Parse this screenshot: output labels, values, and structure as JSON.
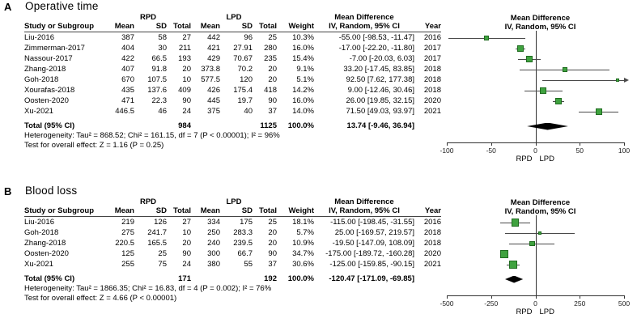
{
  "figure": {
    "headers": {
      "study": "Study or Subgroup",
      "mean": "Mean",
      "sd": "SD",
      "total": "Total",
      "weight": "Weight",
      "year": "Year",
      "total_label": "Total (95% CI)"
    },
    "colors": {
      "square": "#3fa23f",
      "square_border": "#1f6b1f",
      "ci_line": "#4a4a4a",
      "diamond": "#000000",
      "axis": "#333333"
    }
  },
  "chart_data": [
    {
      "type": "forest",
      "panel": "A",
      "title": "Operative time",
      "group1": "RPD",
      "group2": "LPD",
      "effect_label": "Mean Difference",
      "model": "IV, Random, 95% CI",
      "studies": [
        {
          "study": "Liu-2016",
          "mean1": 387,
          "sd1": 58,
          "total1": 27,
          "mean2": 442,
          "sd2": 96,
          "total2": 25,
          "weight": "10.3%",
          "md": -55.0,
          "ci_lo": -98.53,
          "ci_hi": -11.47,
          "ci_text": "-55.00 [-98.53, -11.47]",
          "year": "2016"
        },
        {
          "study": "Zimmerman-2017",
          "mean1": 404,
          "sd1": 30,
          "total1": 211,
          "mean2": 421,
          "sd2": 27.91,
          "total2": 280,
          "weight": "16.0%",
          "md": -17.0,
          "ci_lo": -22.2,
          "ci_hi": -11.8,
          "ci_text": "-17.00 [-22.20, -11.80]",
          "year": "2017"
        },
        {
          "study": "Nassour-2017",
          "mean1": 422,
          "sd1": 66.5,
          "total1": 193,
          "mean2": 429,
          "sd2": 70.67,
          "total2": 235,
          "weight": "15.4%",
          "md": -7.0,
          "ci_lo": -20.03,
          "ci_hi": 6.03,
          "ci_text": "-7.00 [-20.03, 6.03]",
          "year": "2017"
        },
        {
          "study": "Zhang-2018",
          "mean1": 407,
          "sd1": 91.8,
          "total1": 20,
          "mean2": 373.8,
          "sd2": 70.2,
          "total2": 20,
          "weight": "9.1%",
          "md": 33.2,
          "ci_lo": -17.45,
          "ci_hi": 83.85,
          "ci_text": "33.20 [-17.45, 83.85]",
          "year": "2018"
        },
        {
          "study": "Goh-2018",
          "mean1": 670,
          "sd1": 107.5,
          "total1": 10,
          "mean2": 577.5,
          "sd2": 120,
          "total2": 20,
          "weight": "5.1%",
          "md": 92.5,
          "ci_lo": 7.62,
          "ci_hi": 177.38,
          "ci_text": "92.50 [7.62, 177.38]",
          "year": "2018"
        },
        {
          "study": "Xourafas-2018",
          "mean1": 435,
          "sd1": 137.6,
          "total1": 409,
          "mean2": 426,
          "sd2": 175.4,
          "total2": 418,
          "weight": "14.2%",
          "md": 9.0,
          "ci_lo": -12.46,
          "ci_hi": 30.46,
          "ci_text": "9.00 [-12.46, 30.46]",
          "year": "2018"
        },
        {
          "study": "Oosten-2020",
          "mean1": 471,
          "sd1": 22.3,
          "total1": 90,
          "mean2": 445,
          "sd2": 19.7,
          "total2": 90,
          "weight": "16.0%",
          "md": 26.0,
          "ci_lo": 19.85,
          "ci_hi": 32.15,
          "ci_text": "26.00 [19.85, 32.15]",
          "year": "2020"
        },
        {
          "study": "Xu-2021",
          "mean1": 446.5,
          "sd1": 46,
          "total1": 24,
          "mean2": 375,
          "sd2": 40,
          "total2": 37,
          "weight": "14.0%",
          "md": 71.5,
          "ci_lo": 49.03,
          "ci_hi": 93.97,
          "ci_text": "71.50 [49.03, 93.97]",
          "year": "2021"
        }
      ],
      "total": {
        "total1": 984,
        "total2": 1125,
        "weight": "100.0%",
        "md": 13.74,
        "ci_lo": -9.46,
        "ci_hi": 36.94,
        "ci_text": "13.74 [-9.46, 36.94]"
      },
      "heterogeneity": "Heterogeneity: Tau² = 868.52; Chi² = 161.15, df = 7 (P < 0.00001); I² = 96%",
      "overall_test": "Test for overall effect: Z = 1.16 (P = 0.25)",
      "axis": {
        "min": -100,
        "max": 100,
        "ticks": [
          -100,
          -50,
          0,
          50,
          100
        ],
        "favors_left": "RPD",
        "favors_right": "LPD"
      }
    },
    {
      "type": "forest",
      "panel": "B",
      "title": "Blood loss",
      "group1": "RPD",
      "group2": "LPD",
      "effect_label": "Mean Difference",
      "model": "IV, Random, 95% CI",
      "studies": [
        {
          "study": "Liu-2016",
          "mean1": 219,
          "sd1": 126,
          "total1": 27,
          "mean2": 334,
          "sd2": 175,
          "total2": 25,
          "weight": "18.1%",
          "md": -115.0,
          "ci_lo": -198.45,
          "ci_hi": -31.55,
          "ci_text": "-115.00 [-198.45, -31.55]",
          "year": "2016"
        },
        {
          "study": "Goh-2018",
          "mean1": 275,
          "sd1": 241.7,
          "total1": 10,
          "mean2": 250,
          "sd2": 283.3,
          "total2": 20,
          "weight": "5.7%",
          "md": 25.0,
          "ci_lo": -169.57,
          "ci_hi": 219.57,
          "ci_text": "25.00 [-169.57, 219.57]",
          "year": "2018"
        },
        {
          "study": "Zhang-2018",
          "mean1": 220.5,
          "sd1": 165.5,
          "total1": 20,
          "mean2": 240,
          "sd2": 239.5,
          "total2": 20,
          "weight": "10.9%",
          "md": -19.5,
          "ci_lo": -147.09,
          "ci_hi": 108.09,
          "ci_text": "-19.50 [-147.09, 108.09]",
          "year": "2018"
        },
        {
          "study": "Oosten-2020",
          "mean1": 125,
          "sd1": 25,
          "total1": 90,
          "mean2": 300,
          "sd2": 66.7,
          "total2": 90,
          "weight": "34.7%",
          "md": -175.0,
          "ci_lo": -189.72,
          "ci_hi": -160.28,
          "ci_text": "-175.00 [-189.72, -160.28]",
          "year": "2020"
        },
        {
          "study": "Xu-2021",
          "mean1": 255,
          "sd1": 75,
          "total1": 24,
          "mean2": 380,
          "sd2": 55,
          "total2": 37,
          "weight": "30.6%",
          "md": -125.0,
          "ci_lo": -159.85,
          "ci_hi": -90.15,
          "ci_text": "-125.00 [-159.85, -90.15]",
          "year": "2021"
        }
      ],
      "total": {
        "total1": 171,
        "total2": 192,
        "weight": "100.0%",
        "md": -120.47,
        "ci_lo": -171.09,
        "ci_hi": -69.85,
        "ci_text": "-120.47 [-171.09, -69.85]"
      },
      "heterogeneity": "Heterogeneity: Tau² = 1866.35; Chi² = 16.83, df = 4 (P = 0.002); I² = 76%",
      "overall_test": "Test for overall effect: Z = 4.66 (P < 0.00001)",
      "axis": {
        "min": -500,
        "max": 500,
        "ticks": [
          -500,
          -250,
          0,
          250,
          500
        ],
        "favors_left": "RPD",
        "favors_right": "LPD"
      }
    }
  ]
}
